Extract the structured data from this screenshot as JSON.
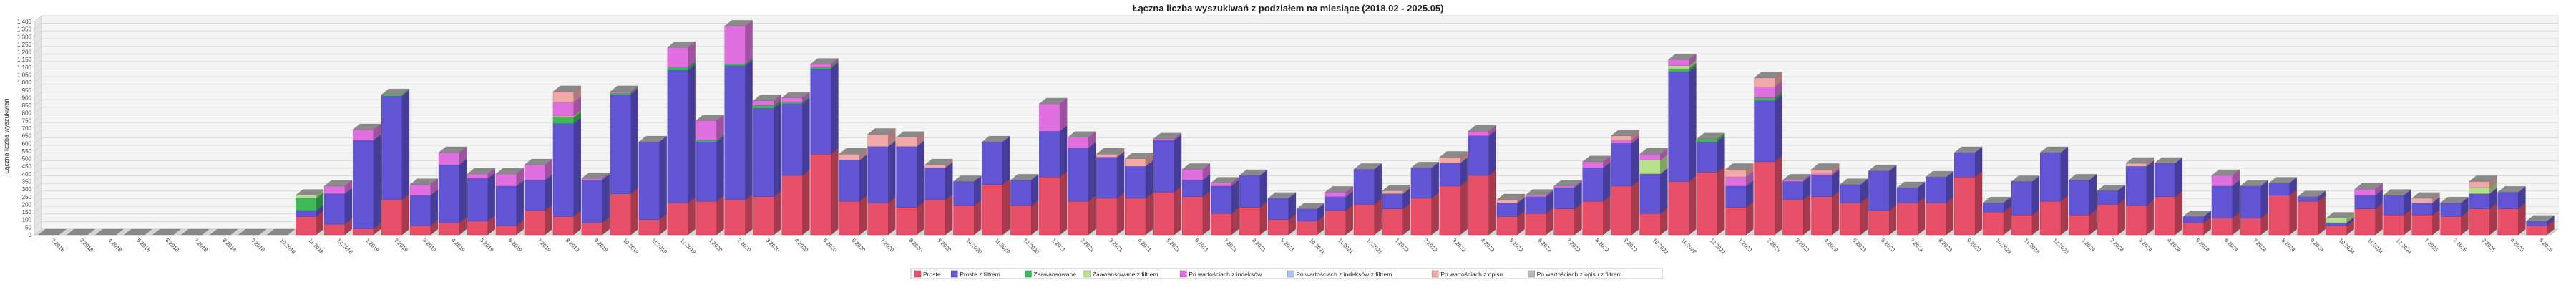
{
  "chart_data": {
    "type": "bar",
    "stacked": true,
    "three_d": true,
    "title": "Łączna liczba wyszukiwań z podziałem na miesiące (2018.02 - 2025.05)",
    "ylabel": "Łączna liczba wyszukiwań",
    "xlabel": "",
    "ylim": [
      0,
      1400
    ],
    "yticks": [
      0,
      50,
      100,
      150,
      200,
      250,
      300,
      350,
      400,
      450,
      500,
      550,
      600,
      650,
      700,
      750,
      800,
      850,
      900,
      950,
      1000,
      1050,
      1100,
      1150,
      1200,
      1250,
      1300,
      1350,
      1400
    ],
    "grid": true,
    "legend_position": "bottom-center",
    "categories": [
      "2.2018",
      "3.2018",
      "4.2018",
      "5.2018",
      "6.2018",
      "7.2018",
      "8.2018",
      "9.2018",
      "10.2018",
      "11.2018",
      "12.2018",
      "1.2019",
      "2.2019",
      "3.2019",
      "4.2019",
      "5.2019",
      "6.2019",
      "7.2019",
      "8.2019",
      "9.2019",
      "10.2019",
      "11.2019",
      "12.2019",
      "1.2020",
      "2.2020",
      "3.2020",
      "4.2020",
      "5.2020",
      "6.2020",
      "7.2020",
      "8.2020",
      "9.2020",
      "10.2020",
      "11.2020",
      "12.2020",
      "1.2021",
      "2.2021",
      "3.2021",
      "4.2021",
      "5.2021",
      "6.2021",
      "7.2021",
      "8.2021",
      "9.2021",
      "10.2021",
      "11.2021",
      "12.2021",
      "1.2022",
      "2.2022",
      "3.2022",
      "4.2022",
      "5.2022",
      "6.2022",
      "7.2022",
      "8.2022",
      "9.2022",
      "10.2022",
      "11.2022",
      "12.2022",
      "1.2023",
      "2.2023",
      "3.2023",
      "4.2023",
      "5.2023",
      "6.2023",
      "7.2023",
      "8.2023",
      "9.2023",
      "10.2023",
      "11.2023",
      "12.2023",
      "1.2024",
      "2.2024",
      "3.2024",
      "4.2024",
      "5.2024",
      "6.2024",
      "7.2024",
      "8.2024",
      "9.2024",
      "10.2024",
      "11.2024",
      "12.2024",
      "1.2025",
      "2.2025",
      "3.2025",
      "4.2025",
      "5.2025"
    ],
    "series": [
      {
        "name": "Proste",
        "color": "#e8506a",
        "values": [
          0,
          0,
          0,
          0,
          0,
          0,
          0,
          0,
          0,
          120,
          70,
          40,
          230,
          60,
          80,
          90,
          60,
          160,
          120,
          80,
          270,
          100,
          210,
          220,
          230,
          250,
          390,
          530,
          220,
          210,
          180,
          230,
          190,
          330,
          190,
          380,
          220,
          240,
          240,
          280,
          250,
          140,
          180,
          100,
          90,
          160,
          200,
          170,
          240,
          320,
          390,
          120,
          140,
          170,
          220,
          320,
          140,
          350,
          410,
          180,
          480,
          230,
          250,
          210,
          160,
          210,
          210,
          380,
          150,
          130,
          220,
          130,
          200,
          190,
          250,
          80,
          110,
          110,
          260,
          220,
          60,
          170,
          130,
          130,
          120,
          170,
          170,
          60
        ]
      },
      {
        "name": "Proste z filtrem",
        "color": "#6155d6",
        "values": [
          0,
          0,
          0,
          0,
          0,
          0,
          0,
          0,
          0,
          40,
          200,
          580,
          680,
          200,
          380,
          280,
          260,
          200,
          610,
          280,
          650,
          510,
          870,
          390,
          880,
          580,
          470,
          560,
          270,
          370,
          400,
          210,
          160,
          280,
          170,
          300,
          350,
          270,
          210,
          340,
          110,
          180,
          210,
          140,
          80,
          90,
          230,
          100,
          200,
          150,
          260,
          90,
          110,
          140,
          220,
          280,
          260,
          720,
          200,
          140,
          400,
          120,
          140,
          120,
          260,
          100,
          170,
          160,
          60,
          220,
          320,
          230,
          90,
          260,
          220,
          40,
          210,
          210,
          80,
          30,
          20,
          90,
          130,
          80,
          90,
          100,
          110,
          30
        ]
      },
      {
        "name": "Zaawansowane",
        "color": "#3db85a",
        "values": [
          0,
          0,
          0,
          0,
          0,
          0,
          0,
          0,
          0,
          80,
          0,
          0,
          10,
          0,
          0,
          0,
          0,
          0,
          40,
          0,
          10,
          0,
          20,
          10,
          10,
          20,
          10,
          10,
          0,
          0,
          0,
          0,
          0,
          0,
          0,
          0,
          0,
          0,
          0,
          0,
          0,
          0,
          0,
          0,
          0,
          0,
          0,
          0,
          0,
          0,
          0,
          0,
          0,
          0,
          0,
          0,
          0,
          20,
          20,
          0,
          20,
          0,
          0,
          0,
          0,
          0,
          0,
          0,
          0,
          0,
          0,
          0,
          0,
          0,
          0,
          0,
          0,
          0,
          0,
          0,
          0,
          0,
          0,
          0,
          0,
          0,
          0,
          0
        ]
      },
      {
        "name": "Zaawansowane z filtrem",
        "color": "#b5e08c",
        "values": [
          0,
          0,
          0,
          0,
          0,
          0,
          0,
          0,
          0,
          20,
          0,
          0,
          0,
          0,
          0,
          0,
          0,
          0,
          10,
          0,
          0,
          0,
          0,
          0,
          0,
          0,
          0,
          0,
          0,
          0,
          0,
          0,
          0,
          0,
          0,
          0,
          0,
          0,
          0,
          0,
          0,
          0,
          0,
          0,
          0,
          0,
          0,
          0,
          0,
          0,
          0,
          0,
          0,
          0,
          0,
          0,
          90,
          20,
          0,
          0,
          0,
          0,
          0,
          0,
          0,
          0,
          0,
          0,
          0,
          0,
          0,
          0,
          0,
          0,
          0,
          0,
          0,
          0,
          0,
          0,
          30,
          0,
          0,
          0,
          0,
          40,
          0,
          0
        ]
      },
      {
        "name": "Po wartościach z indeksów",
        "color": "#e070e0",
        "values": [
          0,
          0,
          0,
          0,
          0,
          0,
          0,
          0,
          0,
          0,
          50,
          70,
          0,
          70,
          80,
          30,
          80,
          100,
          90,
          10,
          10,
          0,
          130,
          130,
          250,
          30,
          30,
          20,
          0,
          0,
          0,
          0,
          0,
          0,
          0,
          180,
          70,
          0,
          0,
          10,
          70,
          20,
          0,
          0,
          0,
          30,
          0,
          0,
          0,
          0,
          30,
          0,
          10,
          10,
          40,
          20,
          40,
          40,
          0,
          60,
          70,
          10,
          10,
          0,
          0,
          0,
          0,
          0,
          0,
          0,
          0,
          0,
          0,
          0,
          0,
          0,
          70,
          0,
          0,
          0,
          0,
          40,
          0,
          0,
          0,
          0,
          0,
          0
        ]
      },
      {
        "name": "Po wartościach z indeksów z filtrem",
        "color": "#a9c4f0",
        "values": [
          0,
          0,
          0,
          0,
          0,
          0,
          0,
          0,
          0,
          0,
          0,
          0,
          0,
          0,
          0,
          0,
          0,
          0,
          0,
          0,
          0,
          0,
          0,
          0,
          0,
          0,
          0,
          0,
          0,
          0,
          0,
          0,
          0,
          0,
          0,
          0,
          0,
          0,
          0,
          0,
          0,
          0,
          0,
          0,
          0,
          0,
          0,
          0,
          0,
          0,
          0,
          0,
          0,
          0,
          0,
          0,
          0,
          0,
          0,
          0,
          0,
          0,
          0,
          0,
          0,
          0,
          0,
          0,
          0,
          0,
          0,
          0,
          0,
          0,
          0,
          0,
          0,
          0,
          0,
          0,
          0,
          0,
          0,
          0,
          0,
          0,
          0,
          0
        ]
      },
      {
        "name": "Po wartościach z opisu",
        "color": "#f0a8a8",
        "values": [
          0,
          0,
          0,
          0,
          0,
          0,
          0,
          0,
          0,
          0,
          0,
          0,
          0,
          0,
          0,
          0,
          0,
          0,
          70,
          0,
          0,
          0,
          0,
          0,
          0,
          0,
          0,
          0,
          40,
          80,
          60,
          20,
          0,
          0,
          0,
          0,
          0,
          20,
          50,
          0,
          0,
          0,
          0,
          0,
          0,
          0,
          0,
          20,
          0,
          40,
          0,
          20,
          0,
          0,
          0,
          30,
          0,
          0,
          0,
          50,
          60,
          0,
          30,
          0,
          0,
          0,
          0,
          0,
          0,
          0,
          0,
          0,
          0,
          20,
          0,
          0,
          0,
          0,
          0,
          0,
          0,
          0,
          0,
          30,
          0,
          40,
          0,
          0
        ]
      },
      {
        "name": "Po wartościach z opisu z filtrem",
        "color": "#b8b8b8",
        "values": [
          0,
          0,
          0,
          0,
          0,
          0,
          0,
          0,
          0,
          0,
          0,
          0,
          0,
          0,
          0,
          0,
          0,
          0,
          0,
          0,
          0,
          0,
          0,
          0,
          0,
          0,
          0,
          0,
          0,
          0,
          0,
          0,
          0,
          0,
          0,
          0,
          0,
          0,
          0,
          0,
          0,
          0,
          0,
          0,
          0,
          0,
          0,
          0,
          0,
          0,
          0,
          0,
          0,
          0,
          0,
          0,
          0,
          0,
          0,
          0,
          0,
          0,
          0,
          0,
          0,
          0,
          0,
          0,
          0,
          0,
          0,
          0,
          0,
          0,
          0,
          0,
          0,
          0,
          0,
          0,
          0,
          0,
          0,
          0,
          0,
          0,
          0,
          0
        ]
      }
    ]
  }
}
